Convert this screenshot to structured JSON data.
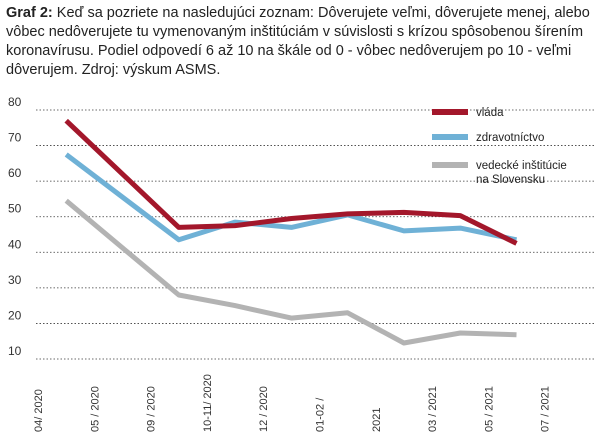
{
  "caption": {
    "label": "Graf 2:",
    "text": " Keď sa pozriete na nasledujúci zoznam: Dôverujete veľmi, dôverujete menej, alebo vôbec nedôverujete tu vymenovaným inštitúciám v súvislosti s krízou spôsobenou šírením koronavírusu.  Podiel odpovedí 6 až 10 na škále od 0 - vôbec nedôverujem po 10 - veľmi dôverujem. Zdroj: výskum ASMS."
  },
  "chart_data": {
    "type": "line",
    "categories": [
      "04/ 2020",
      "05 / 2020",
      "09 / 2020",
      "10-11/ 2020",
      "12 / 2020",
      "01-02 /",
      "2021",
      "03 / 2021",
      "05 / 2021",
      "07 / 2021"
    ],
    "ylim": [
      10,
      80
    ],
    "yticks": [
      10,
      20,
      30,
      40,
      50,
      60,
      70,
      80
    ],
    "grid": true,
    "legend_position": "top-right",
    "series": [
      {
        "name": "vláda",
        "color": "#a3172b",
        "points": [
          [
            0.5,
            77
          ],
          [
            2.5,
            47
          ],
          [
            3.5,
            47.5
          ],
          [
            4.5,
            49.5
          ],
          [
            5.5,
            50.8
          ],
          [
            6.5,
            51.2
          ],
          [
            7.5,
            50.3
          ],
          [
            8.5,
            42.5
          ]
        ]
      },
      {
        "name": "zdravotníctvo",
        "color": "#6fb1d6",
        "points": [
          [
            0.5,
            67.5
          ],
          [
            2.5,
            43.5
          ],
          [
            3.5,
            48.5
          ],
          [
            4.5,
            47
          ],
          [
            5.5,
            50.5
          ],
          [
            6.5,
            46
          ],
          [
            7.5,
            46.8
          ],
          [
            8.5,
            43.5
          ]
        ]
      },
      {
        "name": "vedecké inštitúcie na Slovensku",
        "color": "#b3b3b3",
        "points": [
          [
            0.5,
            54.5
          ],
          [
            2.5,
            28
          ],
          [
            3.5,
            25
          ],
          [
            4.5,
            21.5
          ],
          [
            5.5,
            23
          ],
          [
            6.5,
            14.5
          ],
          [
            7.5,
            17.3
          ],
          [
            8.5,
            16.8
          ]
        ]
      }
    ]
  }
}
